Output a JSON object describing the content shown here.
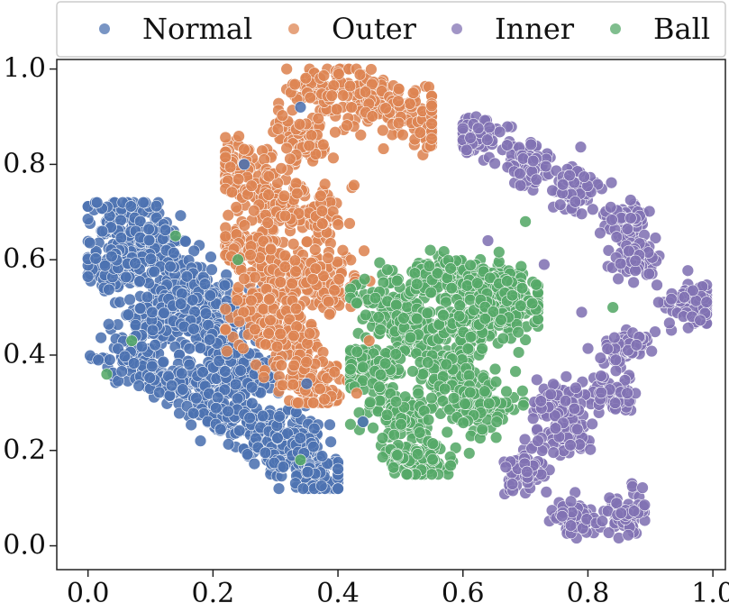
{
  "chart_data": {
    "type": "scatter",
    "title": "",
    "xlabel": "",
    "ylabel": "",
    "xlim": [
      -0.05,
      1.02
    ],
    "ylim": [
      -0.05,
      1.02
    ],
    "x_ticks": [
      0.0,
      0.2,
      0.4,
      0.6,
      0.8,
      1.0
    ],
    "y_ticks": [
      0.0,
      0.2,
      0.4,
      0.6,
      0.8,
      1.0
    ],
    "x_tick_labels": [
      "0.0",
      "0.2",
      "0.4",
      "0.6",
      "0.8",
      "1.0"
    ],
    "y_tick_labels": [
      "0.0",
      "0.2",
      "0.4",
      "0.6",
      "0.8",
      "1.0"
    ],
    "grid": false,
    "legend_position": "top",
    "series": [
      {
        "name": "Normal",
        "color": "#4C72B0",
        "cluster_points": [
          {
            "x": 0.06,
            "y": 0.68
          },
          {
            "x": 0.1,
            "y": 0.63
          },
          {
            "x": 0.04,
            "y": 0.58
          },
          {
            "x": 0.14,
            "y": 0.55
          },
          {
            "x": 0.1,
            "y": 0.48
          },
          {
            "x": 0.18,
            "y": 0.52
          },
          {
            "x": 0.2,
            "y": 0.44
          },
          {
            "x": 0.08,
            "y": 0.39
          },
          {
            "x": 0.16,
            "y": 0.34
          },
          {
            "x": 0.25,
            "y": 0.37
          },
          {
            "x": 0.23,
            "y": 0.28
          },
          {
            "x": 0.3,
            "y": 0.24
          },
          {
            "x": 0.33,
            "y": 0.19
          },
          {
            "x": 0.38,
            "y": 0.14
          }
        ],
        "x_range": [
          0.0,
          0.4
        ],
        "y_range": [
          0.12,
          0.72
        ]
      },
      {
        "name": "Outer",
        "color": "#DD8452",
        "cluster_points": [
          {
            "x": 0.37,
            "y": 0.96
          },
          {
            "x": 0.46,
            "y": 0.93
          },
          {
            "x": 0.53,
            "y": 0.9
          },
          {
            "x": 0.34,
            "y": 0.85
          },
          {
            "x": 0.23,
            "y": 0.8
          },
          {
            "x": 0.29,
            "y": 0.74
          },
          {
            "x": 0.36,
            "y": 0.69
          },
          {
            "x": 0.25,
            "y": 0.63
          },
          {
            "x": 0.31,
            "y": 0.58
          },
          {
            "x": 0.38,
            "y": 0.55
          },
          {
            "x": 0.27,
            "y": 0.5
          },
          {
            "x": 0.32,
            "y": 0.43
          },
          {
            "x": 0.36,
            "y": 0.34
          }
        ],
        "x_range": [
          0.22,
          0.55
        ],
        "y_range": [
          0.3,
          1.0
        ]
      },
      {
        "name": "Inner",
        "color": "#8172B3",
        "cluster_points": [
          {
            "x": 0.62,
            "y": 0.86
          },
          {
            "x": 0.7,
            "y": 0.8
          },
          {
            "x": 0.78,
            "y": 0.75
          },
          {
            "x": 0.86,
            "y": 0.68
          },
          {
            "x": 0.88,
            "y": 0.6
          },
          {
            "x": 0.97,
            "y": 0.51
          },
          {
            "x": 0.86,
            "y": 0.42
          },
          {
            "x": 0.83,
            "y": 0.32
          },
          {
            "x": 0.77,
            "y": 0.23
          },
          {
            "x": 0.7,
            "y": 0.16
          },
          {
            "x": 0.78,
            "y": 0.06
          },
          {
            "x": 0.86,
            "y": 0.07
          },
          {
            "x": 0.75,
            "y": 0.3
          }
        ],
        "x_range": [
          0.6,
          0.99
        ],
        "y_range": [
          0.0,
          0.9
        ]
      },
      {
        "name": "Ball",
        "color": "#55A868",
        "cluster_points": [
          {
            "x": 0.48,
            "y": 0.51
          },
          {
            "x": 0.56,
            "y": 0.56
          },
          {
            "x": 0.65,
            "y": 0.55
          },
          {
            "x": 0.53,
            "y": 0.44
          },
          {
            "x": 0.62,
            "y": 0.46
          },
          {
            "x": 0.45,
            "y": 0.38
          },
          {
            "x": 0.58,
            "y": 0.36
          },
          {
            "x": 0.68,
            "y": 0.51
          },
          {
            "x": 0.5,
            "y": 0.27
          },
          {
            "x": 0.63,
            "y": 0.29
          },
          {
            "x": 0.53,
            "y": 0.18
          }
        ],
        "x_range": [
          0.42,
          0.72
        ],
        "y_range": [
          0.15,
          0.62
        ]
      }
    ]
  }
}
